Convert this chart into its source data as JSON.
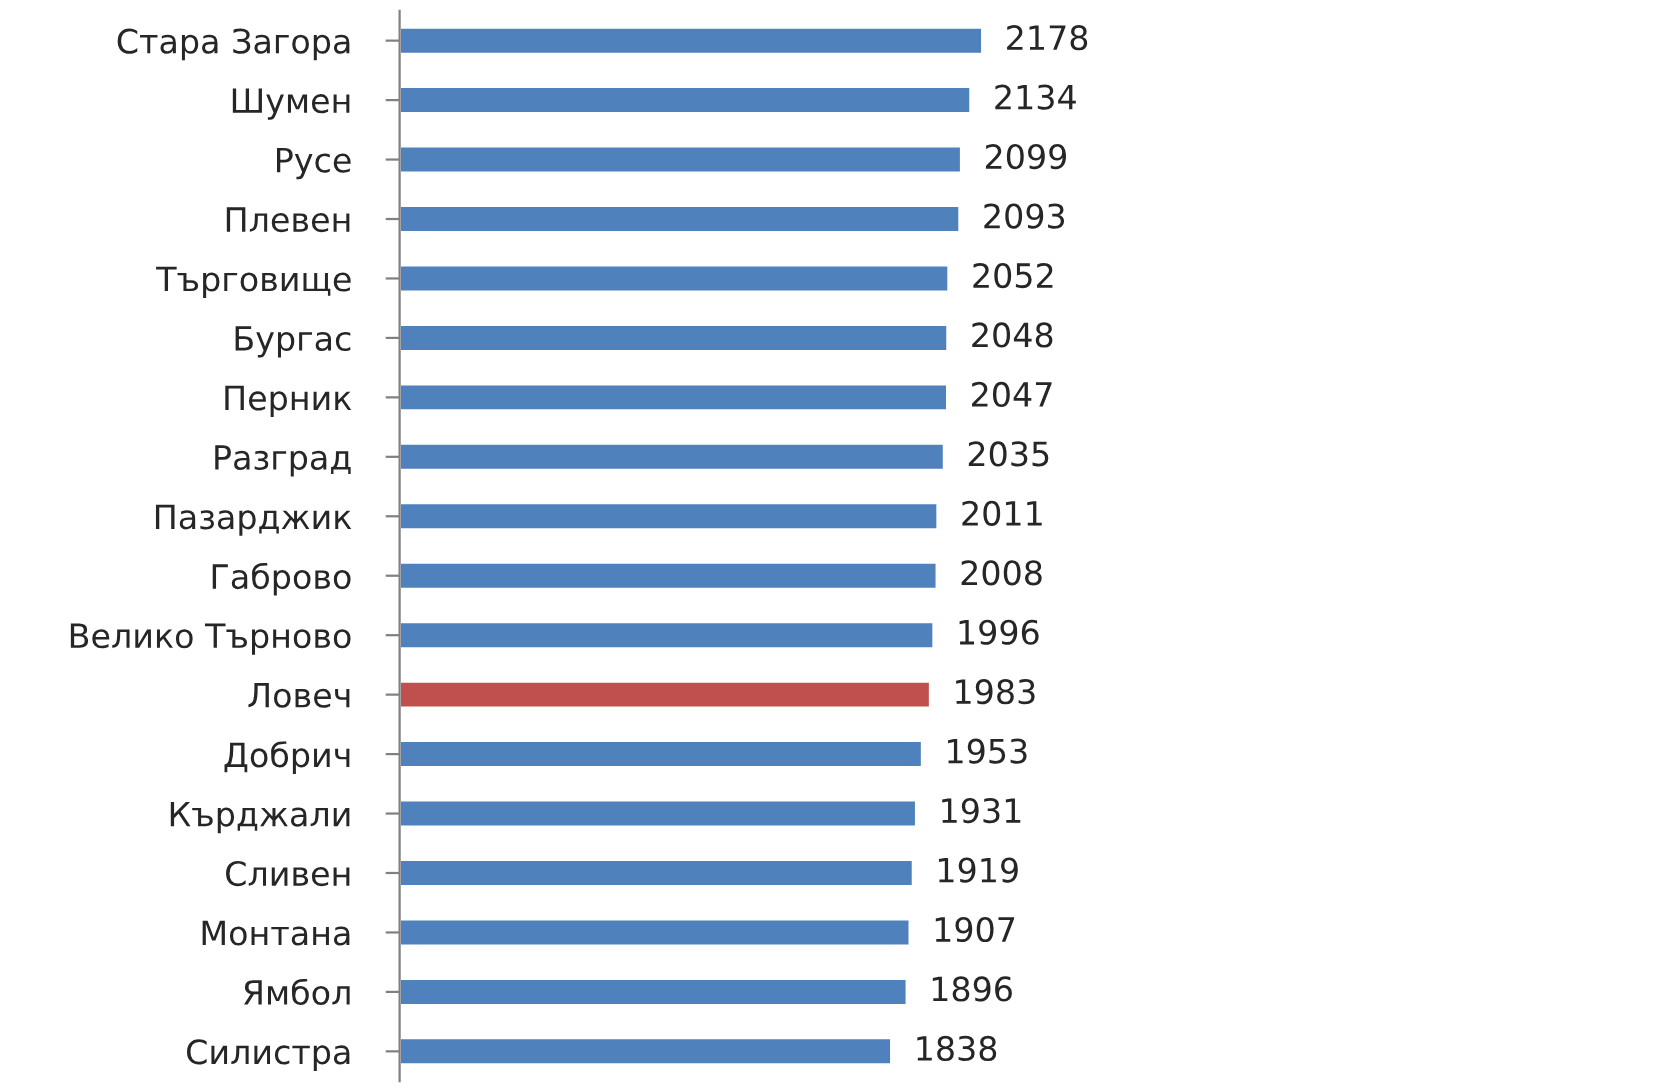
{
  "chart_data": {
    "type": "bar",
    "orientation": "horizontal",
    "categories": [
      "Стара Загора",
      "Шумен",
      "Русе",
      "Плевен",
      "Търговище",
      "Бургас",
      "Перник",
      "Разград",
      "Пазарджик",
      "Габрово",
      "Велико Търново",
      "Ловеч",
      "Добрич",
      "Кърджали",
      "Сливен",
      "Монтана",
      "Ямбол",
      "Силистра"
    ],
    "values": [
      2178,
      2134,
      2099,
      2093,
      2052,
      2048,
      2047,
      2035,
      2011,
      2008,
      1996,
      1983,
      1953,
      1931,
      1919,
      1907,
      1896,
      1838
    ],
    "colors": [
      "#4f81bd",
      "#4f81bd",
      "#4f81bd",
      "#4f81bd",
      "#4f81bd",
      "#4f81bd",
      "#4f81bd",
      "#4f81bd",
      "#4f81bd",
      "#4f81bd",
      "#4f81bd",
      "#c0504d",
      "#4f81bd",
      "#4f81bd",
      "#4f81bd",
      "#4f81bd",
      "#4f81bd",
      "#4f81bd"
    ],
    "data_labels": true,
    "tick_labels": "y",
    "grid": false,
    "legend": false
  }
}
